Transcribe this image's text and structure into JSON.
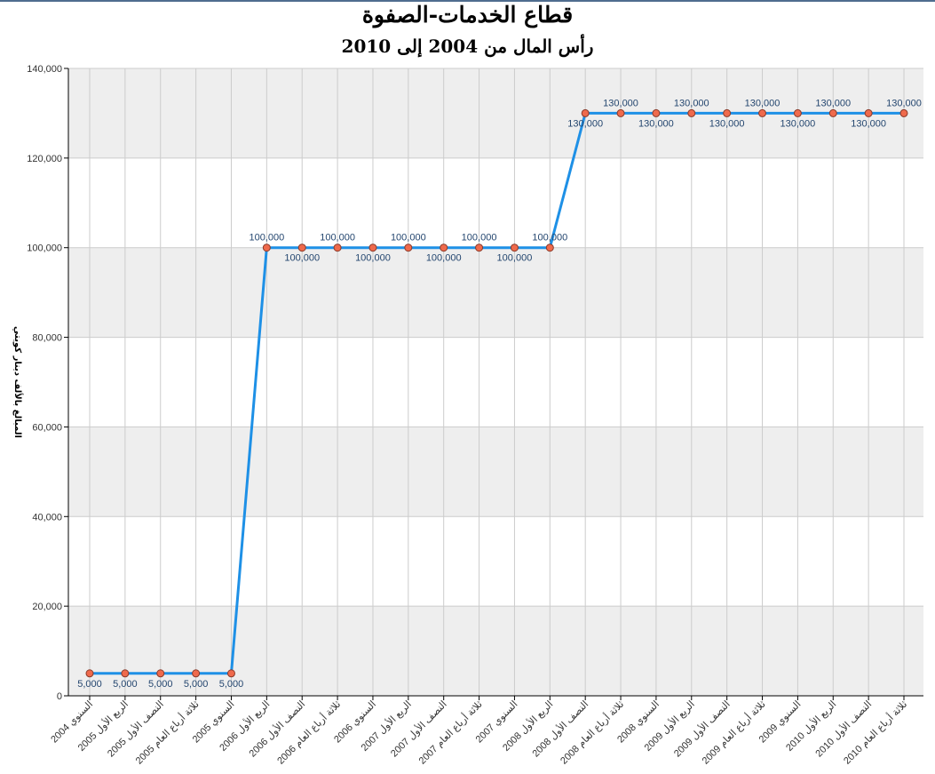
{
  "title": "قطاع الخدمات-الصفوة",
  "subtitle": "رأس المال من 2004 إلى 2010",
  "chart_data": {
    "type": "line",
    "title": "قطاع الخدمات-الصفوة",
    "subtitle": "رأس المال من 2004 إلى 2010",
    "ylabel": "المبالغ بالألف دينار كويتي",
    "xlabel": "",
    "ylim": [
      0,
      140000
    ],
    "yticks": [
      0,
      20000,
      40000,
      60000,
      80000,
      100000,
      120000,
      140000
    ],
    "ytick_labels": [
      "0",
      "20,000",
      "40,000",
      "60,000",
      "80,000",
      "100,000",
      "120,000",
      "140,000"
    ],
    "grid": "horizontal alternating bands and vertical lines",
    "categories": [
      "السنوي 2004",
      "الربع الأول 2005",
      "النصف الأول 2005",
      "ثلاثة أرباع العام 2005",
      "السنوي 2005",
      "الربع الأول 2006",
      "النصف الأول 2006",
      "ثلاثة أرباع العام 2006",
      "السنوي 2006",
      "الربع الأول 2007",
      "النصف الأول 2007",
      "ثلاثة أرباع العام 2007",
      "السنوي 2007",
      "الربع الأول 2008",
      "النصف الأول 2008",
      "ثلاثة أرباع العام 2008",
      "السنوي 2008",
      "الربع الأول 2009",
      "النصف الأول 2009",
      "ثلاثة أرباع العام 2009",
      "السنوي 2009",
      "الربع الأول 2010",
      "النصف الأول 2010",
      "ثلاثة أرباع العام 2010"
    ],
    "values": [
      5000,
      5000,
      5000,
      5000,
      5000,
      100000,
      100000,
      100000,
      100000,
      100000,
      100000,
      100000,
      100000,
      100000,
      130000,
      130000,
      130000,
      130000,
      130000,
      130000,
      130000,
      130000,
      130000,
      130000
    ],
    "value_labels": [
      "5,000",
      "5,000",
      "5,000",
      "5,000",
      "5,000",
      "100,000",
      "100,000",
      "100,000",
      "100,000",
      "100,000",
      "100,000",
      "100,000",
      "100,000",
      "100,000",
      "130,000",
      "130,000",
      "130,000",
      "130,000",
      "130,000",
      "130,000",
      "130,000",
      "130,000",
      "130,000",
      "130,000"
    ],
    "colors": {
      "line": "#1e90e6",
      "marker_fill": "#ef6a4c",
      "marker_stroke": "#8a3a2a",
      "band": "#eeeeee",
      "grid": "#cccccc",
      "label": "#24466f"
    }
  }
}
